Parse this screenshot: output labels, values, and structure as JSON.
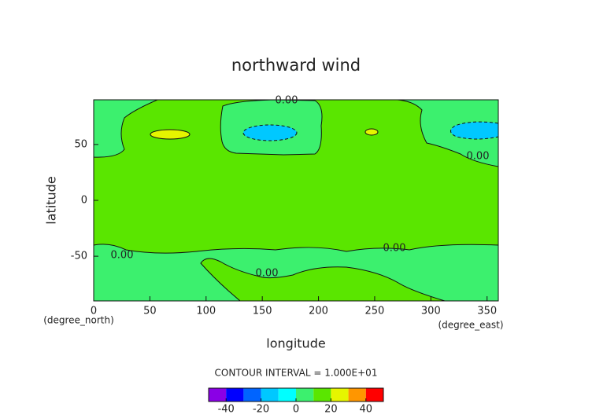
{
  "chart_data": {
    "type": "contour",
    "title": "northward wind",
    "xlabel": "longitude",
    "ylabel": "latitude",
    "x_unit": "(degree_east)",
    "y_unit": "(degree_north)",
    "xlim": [
      0,
      360
    ],
    "ylim": [
      -90,
      90
    ],
    "xticks": [
      0,
      50,
      100,
      150,
      200,
      250,
      300,
      350
    ],
    "yticks": [
      -50,
      0,
      50
    ],
    "contour_labels": [
      "0.00",
      "0.00",
      "0.00",
      "0.00",
      "0.00"
    ],
    "contour_interval_text": "CONTOUR INTERVAL = 1.000E+01",
    "colorbar": {
      "levels": [
        -50,
        -40,
        -30,
        -20,
        -10,
        0,
        10,
        20,
        30,
        40,
        50
      ],
      "colors": [
        "#8a00e6",
        "#0000ff",
        "#0064ff",
        "#00c8ff",
        "#00ffff",
        "#3cf06e",
        "#5ae600",
        "#e6f500",
        "#ff9600",
        "#ff0000",
        "#ffa0a0"
      ],
      "ticks": [
        -40,
        -20,
        0,
        20,
        40
      ]
    }
  }
}
